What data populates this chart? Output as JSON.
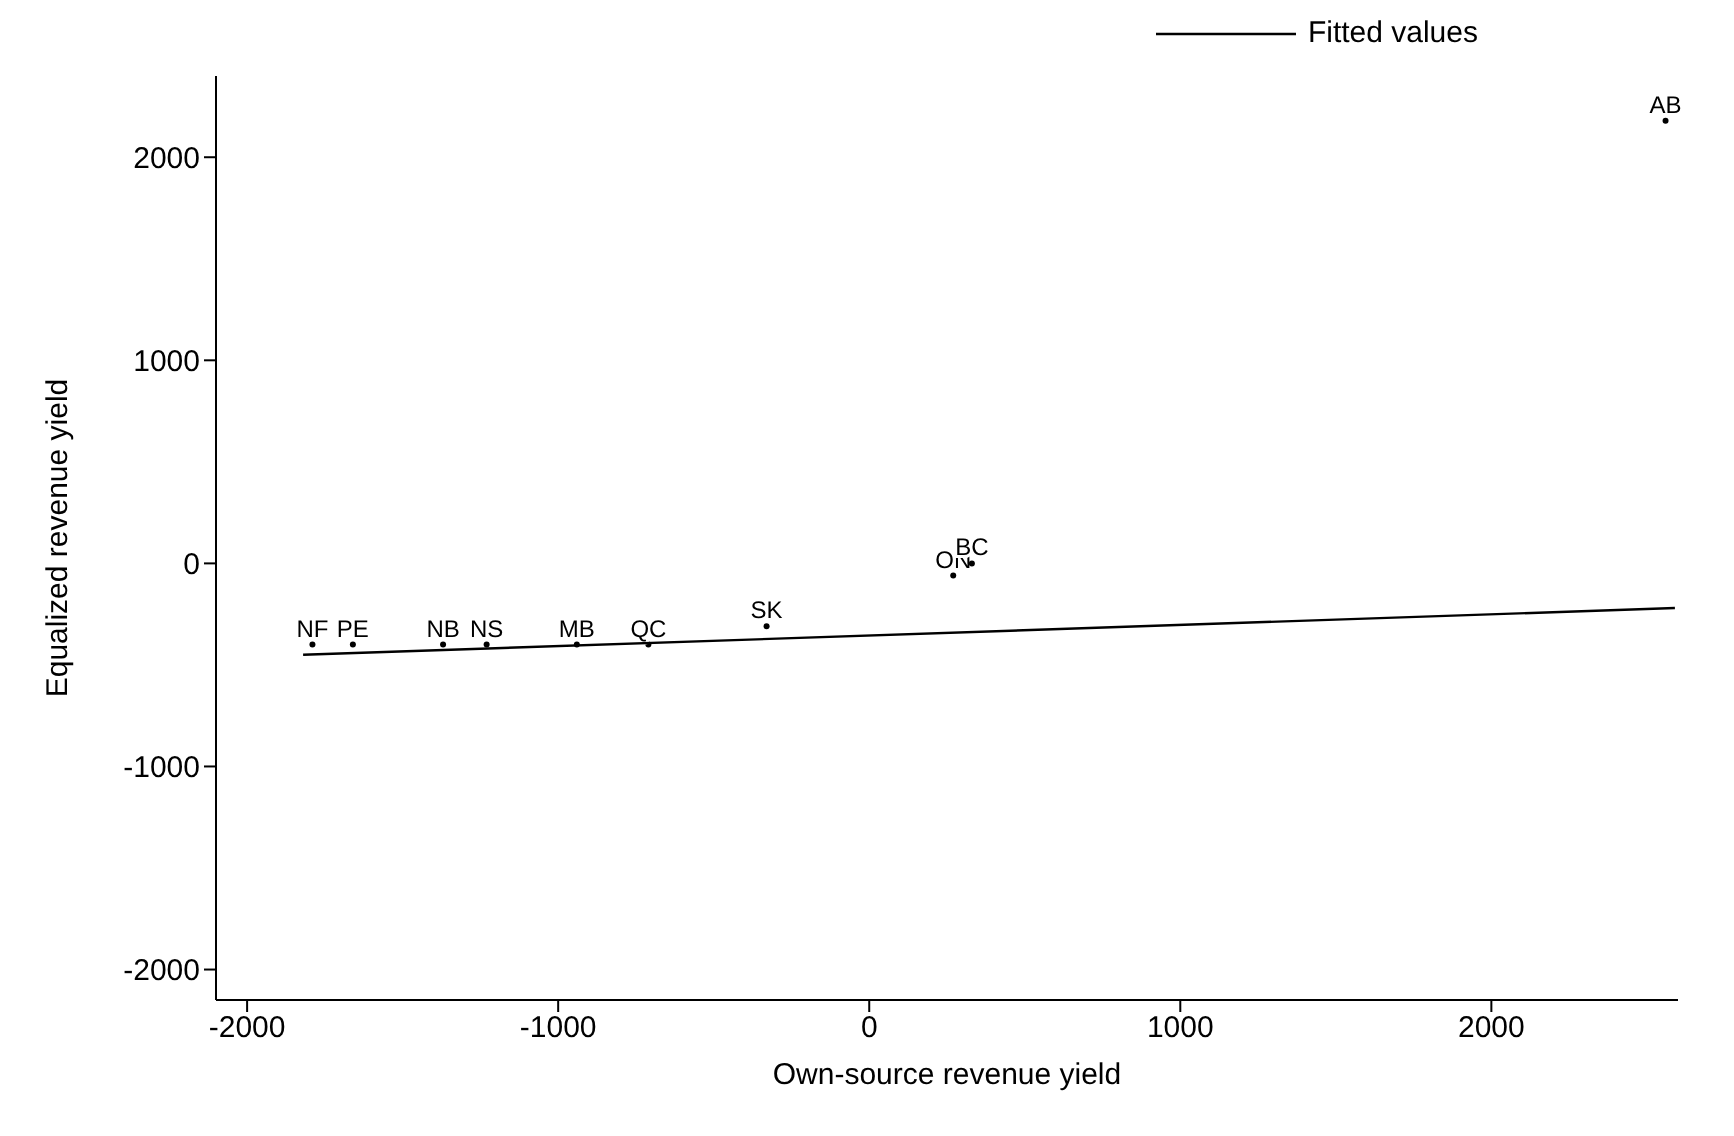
{
  "chart_data": {
    "type": "scatter",
    "xlabel": "Own-source revenue yield",
    "ylabel": "Equalized revenue yield",
    "xlim": [
      -2100,
      2600
    ],
    "ylim": [
      -2150,
      2400
    ],
    "xticks": [
      -2000,
      -1000,
      0,
      1000,
      2000
    ],
    "yticks": [
      -2000,
      -1000,
      0,
      1000,
      2000
    ],
    "grid": false,
    "legend": "top right",
    "series": [
      {
        "color": "#000000",
        "marker": "circle",
        "x": [
          -1790,
          -1660,
          -1370,
          -1230,
          -940,
          -710,
          -330,
          270,
          330,
          2560
        ],
        "values": [
          -400,
          -400,
          -400,
          -400,
          -400,
          -400,
          -310,
          -60,
          0,
          2180
        ],
        "value_labels": [
          "NF",
          "PE",
          "NB",
          "NS",
          "MB",
          "QC",
          "SK",
          "ON",
          "BC",
          "AB"
        ]
      },
      {
        "type": "line",
        "name": "Fitted values",
        "color": "#000000",
        "x": [
          -1820,
          2590
        ],
        "values": [
          -450,
          -220
        ],
        "line_style": "solid"
      }
    ]
  }
}
